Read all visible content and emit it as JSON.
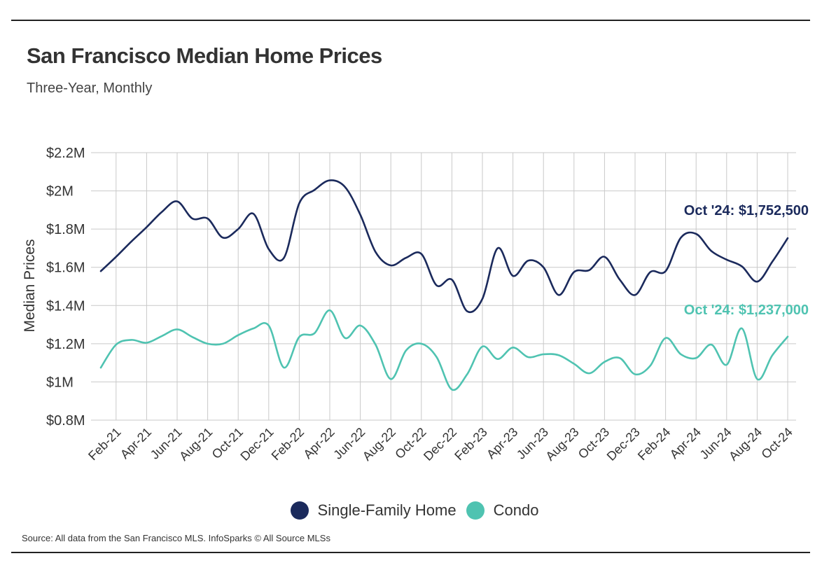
{
  "title": "San Francisco Median Home Prices",
  "subtitle": "Three-Year, Monthly",
  "source": "Source:  All data from the San Francisco MLS. InfoSparks © All Source MLSs",
  "chart_data": {
    "type": "line",
    "title": "San Francisco Median Home Prices",
    "subtitle": "Three-Year, Monthly",
    "ylabel": "Median Prices",
    "xlabel": "",
    "ylim": [
      800000,
      2200000
    ],
    "y_ticks": [
      {
        "value": 800000,
        "label": "$0.8M"
      },
      {
        "value": 1000000,
        "label": "$1M"
      },
      {
        "value": 1200000,
        "label": "$1.2M"
      },
      {
        "value": 1400000,
        "label": "$1.4M"
      },
      {
        "value": 1600000,
        "label": "$1.6M"
      },
      {
        "value": 1800000,
        "label": "$1.8M"
      },
      {
        "value": 2000000,
        "label": "$2M"
      },
      {
        "value": 2200000,
        "label": "$2.2M"
      }
    ],
    "categories": [
      "Jan-21",
      "Feb-21",
      "Mar-21",
      "Apr-21",
      "May-21",
      "Jun-21",
      "Jul-21",
      "Aug-21",
      "Sep-21",
      "Oct-21",
      "Nov-21",
      "Dec-21",
      "Jan-22",
      "Feb-22",
      "Mar-22",
      "Apr-22",
      "May-22",
      "Jun-22",
      "Jul-22",
      "Aug-22",
      "Sep-22",
      "Oct-22",
      "Nov-22",
      "Dec-22",
      "Jan-23",
      "Feb-23",
      "Mar-23",
      "Apr-23",
      "May-23",
      "Jun-23",
      "Jul-23",
      "Aug-23",
      "Sep-23",
      "Oct-23",
      "Nov-23",
      "Dec-23",
      "Jan-24",
      "Feb-24",
      "Mar-24",
      "Apr-24",
      "May-24",
      "Jun-24",
      "Jul-24",
      "Aug-24",
      "Sep-24",
      "Oct-24"
    ],
    "x_tick_labels": [
      "Feb-21",
      "Apr-21",
      "Jun-21",
      "Aug-21",
      "Oct-21",
      "Dec-21",
      "Feb-22",
      "Apr-22",
      "Jun-22",
      "Aug-22",
      "Oct-22",
      "Dec-22",
      "Feb-23",
      "Apr-23",
      "Jun-23",
      "Aug-23",
      "Oct-23",
      "Dec-23",
      "Feb-24",
      "Apr-24",
      "Jun-24",
      "Aug-24",
      "Oct-24"
    ],
    "grid": true,
    "legend_position": "bottom-center",
    "series": [
      {
        "name": "Single-Family Home",
        "color": "#1b2a5c",
        "values": [
          1580000,
          1655000,
          1735000,
          1810000,
          1890000,
          1945000,
          1855000,
          1855000,
          1755000,
          1800000,
          1880000,
          1695000,
          1650000,
          1935000,
          2005000,
          2055000,
          2020000,
          1875000,
          1680000,
          1610000,
          1650000,
          1670000,
          1505000,
          1535000,
          1370000,
          1435000,
          1700000,
          1555000,
          1635000,
          1600000,
          1455000,
          1575000,
          1585000,
          1655000,
          1535000,
          1455000,
          1575000,
          1580000,
          1755000,
          1775000,
          1685000,
          1640000,
          1605000,
          1525000,
          1630000,
          1752500
        ]
      },
      {
        "name": "Condo",
        "color": "#4fc3b1",
        "values": [
          1075000,
          1195000,
          1220000,
          1205000,
          1240000,
          1275000,
          1235000,
          1200000,
          1200000,
          1245000,
          1280000,
          1295000,
          1075000,
          1235000,
          1255000,
          1375000,
          1230000,
          1295000,
          1195000,
          1015000,
          1165000,
          1200000,
          1130000,
          960000,
          1040000,
          1185000,
          1120000,
          1180000,
          1130000,
          1145000,
          1140000,
          1095000,
          1045000,
          1105000,
          1125000,
          1040000,
          1085000,
          1230000,
          1145000,
          1125000,
          1195000,
          1090000,
          1280000,
          1015000,
          1140000,
          1237000
        ]
      }
    ],
    "annotations": [
      {
        "series": "Single-Family Home",
        "text": "Oct '24: $1,752,500"
      },
      {
        "series": "Condo",
        "text": "Oct '24: $1,237,000"
      }
    ]
  },
  "legend": [
    {
      "label": "Single-Family Home",
      "color": "#1b2a5c"
    },
    {
      "label": "Condo",
      "color": "#4fc3b1"
    }
  ]
}
